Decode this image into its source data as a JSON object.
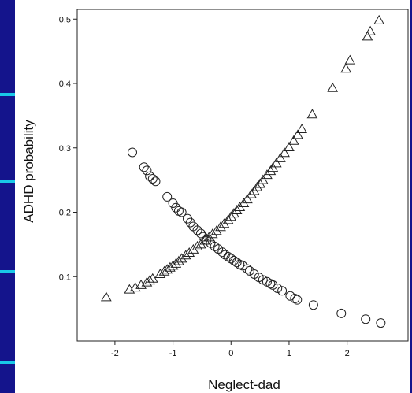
{
  "chart_data": {
    "type": "scatter",
    "xlabel": "Neglect-dad",
    "ylabel": "ADHD probability",
    "xlim": [
      -2.65,
      3.05
    ],
    "ylim": [
      0.0,
      0.515
    ],
    "x_ticks": [
      -2,
      -1,
      0,
      1,
      2
    ],
    "y_ticks": [
      0.1,
      0.2,
      0.3,
      0.4,
      0.5
    ],
    "grid": false,
    "legend": "none",
    "series": [
      {
        "marker": "triangle",
        "points": [
          [
            -2.15,
            0.068
          ],
          [
            -1.75,
            0.08
          ],
          [
            -1.65,
            0.083
          ],
          [
            -1.55,
            0.087
          ],
          [
            -1.45,
            0.091
          ],
          [
            -1.4,
            0.094
          ],
          [
            -1.35,
            0.097
          ],
          [
            -1.22,
            0.104
          ],
          [
            -1.15,
            0.108
          ],
          [
            -1.1,
            0.111
          ],
          [
            -1.05,
            0.114
          ],
          [
            -1.0,
            0.117
          ],
          [
            -0.95,
            0.12
          ],
          [
            -0.9,
            0.124
          ],
          [
            -0.85,
            0.128
          ],
          [
            -0.78,
            0.133
          ],
          [
            -0.72,
            0.137
          ],
          [
            -0.65,
            0.142
          ],
          [
            -0.58,
            0.147
          ],
          [
            -0.52,
            0.15
          ],
          [
            -0.45,
            0.156
          ],
          [
            -0.38,
            0.161
          ],
          [
            -0.32,
            0.166
          ],
          [
            -0.25,
            0.171
          ],
          [
            -0.18,
            0.177
          ],
          [
            -0.12,
            0.182
          ],
          [
            -0.05,
            0.188
          ],
          [
            0.0,
            0.193
          ],
          [
            0.05,
            0.198
          ],
          [
            0.1,
            0.203
          ],
          [
            0.15,
            0.208
          ],
          [
            0.22,
            0.214
          ],
          [
            0.28,
            0.22
          ],
          [
            0.35,
            0.228
          ],
          [
            0.4,
            0.233
          ],
          [
            0.45,
            0.239
          ],
          [
            0.5,
            0.244
          ],
          [
            0.55,
            0.25
          ],
          [
            0.62,
            0.258
          ],
          [
            0.68,
            0.264
          ],
          [
            0.72,
            0.269
          ],
          [
            0.78,
            0.276
          ],
          [
            0.85,
            0.284
          ],
          [
            0.92,
            0.292
          ],
          [
            1.0,
            0.301
          ],
          [
            1.08,
            0.311
          ],
          [
            1.15,
            0.32
          ],
          [
            1.22,
            0.329
          ],
          [
            1.4,
            0.352
          ],
          [
            1.75,
            0.393
          ],
          [
            1.98,
            0.423
          ],
          [
            2.05,
            0.436
          ],
          [
            2.35,
            0.473
          ],
          [
            2.4,
            0.481
          ],
          [
            2.55,
            0.498
          ]
        ]
      },
      {
        "marker": "circle",
        "points": [
          [
            -1.7,
            0.293
          ],
          [
            -1.5,
            0.27
          ],
          [
            -1.45,
            0.265
          ],
          [
            -1.4,
            0.256
          ],
          [
            -1.35,
            0.252
          ],
          [
            -1.3,
            0.248
          ],
          [
            -1.1,
            0.224
          ],
          [
            -1.0,
            0.214
          ],
          [
            -0.95,
            0.207
          ],
          [
            -0.9,
            0.202
          ],
          [
            -0.85,
            0.2
          ],
          [
            -0.75,
            0.19
          ],
          [
            -0.7,
            0.184
          ],
          [
            -0.65,
            0.178
          ],
          [
            -0.58,
            0.172
          ],
          [
            -0.52,
            0.167
          ],
          [
            -0.48,
            0.162
          ],
          [
            -0.42,
            0.157
          ],
          [
            -0.35,
            0.152
          ],
          [
            -0.28,
            0.147
          ],
          [
            -0.22,
            0.143
          ],
          [
            -0.15,
            0.138
          ],
          [
            -0.1,
            0.134
          ],
          [
            -0.05,
            0.131
          ],
          [
            0.0,
            0.128
          ],
          [
            0.05,
            0.125
          ],
          [
            0.1,
            0.122
          ],
          [
            0.15,
            0.119
          ],
          [
            0.2,
            0.117
          ],
          [
            0.28,
            0.112
          ],
          [
            0.32,
            0.109
          ],
          [
            0.4,
            0.104
          ],
          [
            0.48,
            0.099
          ],
          [
            0.55,
            0.095
          ],
          [
            0.62,
            0.092
          ],
          [
            0.68,
            0.089
          ],
          [
            0.72,
            0.087
          ],
          [
            0.8,
            0.082
          ],
          [
            0.88,
            0.078
          ],
          [
            1.02,
            0.07
          ],
          [
            1.1,
            0.066
          ],
          [
            1.14,
            0.064
          ],
          [
            1.42,
            0.056
          ],
          [
            1.9,
            0.043
          ],
          [
            2.32,
            0.034
          ],
          [
            2.58,
            0.028
          ]
        ]
      }
    ]
  }
}
